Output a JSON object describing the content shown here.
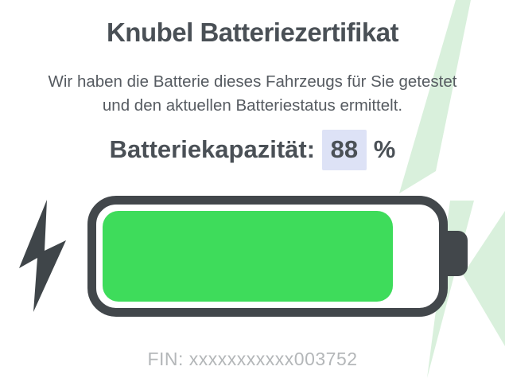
{
  "certificate": {
    "title": "Knubel Batteriezertifikat",
    "subtitle_line1": "Wir haben die Batterie dieses Fahrzeugs für Sie getestet",
    "subtitle_line2": "und den aktuellen Batteriestatus ermittelt.",
    "capacity_label": "Batteriekapazität:",
    "capacity_value": "88",
    "capacity_unit": "%",
    "fin_text": "FIN: xxxxxxxxxxx003752"
  },
  "battery": {
    "capacity_percent": 88
  },
  "icons": {
    "left_decoration": "lightning-bolt-icon",
    "background_decoration": "background-lightning-icon"
  },
  "colors": {
    "heading_text": "#4a5056",
    "body_text": "#565b61",
    "fin_text": "#b4b7b9",
    "highlight_bg": "#dde2f6",
    "battery_outline": "#42474b",
    "battery_fill": "#3edc5b",
    "bolt_dark": "#3f4549",
    "bolt_light": "#d9f0dc",
    "page_bg": "#ffffff"
  }
}
